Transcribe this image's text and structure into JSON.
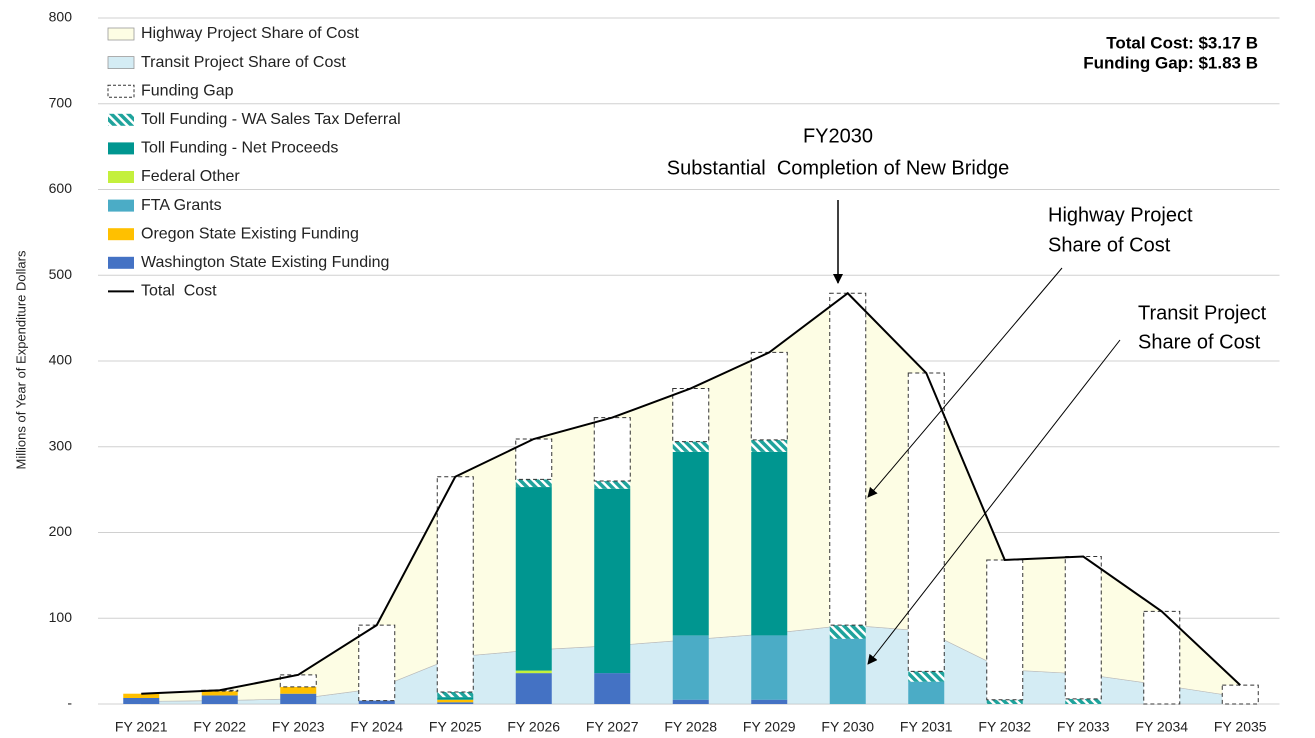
{
  "chart_data": {
    "type": "bar",
    "ylabel": "Millions of Year of Expenditure Dollars",
    "categories": [
      "FY 2021",
      "FY 2022",
      "FY 2023",
      "FY 2024",
      "FY 2025",
      "FY 2026",
      "FY 2027",
      "FY 2028",
      "FY 2029",
      "FY 2030",
      "FY 2031",
      "FY 2032",
      "FY 2033",
      "FY 2034",
      "FY 2035"
    ],
    "ylim": [
      0,
      800
    ],
    "yticks": [
      {
        "value": 0,
        "label": "-"
      },
      100,
      200,
      300,
      400,
      500,
      600,
      700,
      800
    ],
    "grid": true,
    "series": [
      {
        "name": "Washington State Existing Funding",
        "kind": "bar",
        "color": "#4472c4",
        "values": [
          7,
          10,
          12,
          4,
          2,
          36,
          36,
          5,
          5,
          0,
          0,
          0,
          0,
          0,
          0
        ]
      },
      {
        "name": "Oregon State Existing Funding",
        "kind": "bar",
        "color": "#ffc000",
        "values": [
          5,
          5,
          8,
          0,
          3,
          0,
          0,
          0,
          0,
          0,
          0,
          0,
          0,
          0,
          0
        ]
      },
      {
        "name": "FTA Grants",
        "kind": "bar",
        "color": "#4bacc6",
        "values": [
          0,
          0,
          0,
          0,
          0,
          0,
          0,
          75,
          75,
          76,
          26,
          0,
          0,
          0,
          0
        ]
      },
      {
        "name": "Federal Other",
        "kind": "bar",
        "color": "#c4f03c",
        "values": [
          0,
          0,
          0,
          0,
          0,
          3,
          0,
          0,
          0,
          0,
          0,
          0,
          0,
          0,
          0
        ]
      },
      {
        "name": "Toll Funding - Net Proceeds",
        "kind": "bar",
        "color": "#009690",
        "values": [
          0,
          0,
          0,
          0,
          3,
          214,
          215,
          214,
          214,
          0,
          0,
          0,
          0,
          0,
          0
        ]
      },
      {
        "name": "Toll Funding - WA Sales Tax Deferral",
        "kind": "bar",
        "color": "#1fa39c",
        "pattern": "hatch",
        "values": [
          0,
          0,
          0,
          0,
          6,
          9,
          9,
          12,
          14,
          16,
          12,
          5,
          6,
          0,
          0
        ]
      },
      {
        "name": "Funding Gap",
        "kind": "bar",
        "color": "#ffffff",
        "dashed": true,
        "values": [
          0,
          1,
          14,
          88,
          251,
          47,
          74,
          62,
          102,
          387,
          348,
          163,
          166,
          108,
          22
        ]
      },
      {
        "name": "Transit Project Share of Cost",
        "kind": "area",
        "color": "#d4ecf4",
        "values": [
          3,
          4,
          6,
          18,
          55,
          63,
          68,
          75,
          82,
          92,
          85,
          40,
          35,
          22,
          8
        ]
      },
      {
        "name": "Highway Project Share of Cost",
        "kind": "area",
        "color": "#fdfde4",
        "values": [
          9,
          12,
          28,
          74,
          210,
          246,
          266,
          293,
          328,
          387,
          301,
          128,
          137,
          86,
          14
        ]
      },
      {
        "name": "Total  Cost",
        "kind": "line",
        "color": "#000000",
        "values": [
          12,
          16,
          34,
          92,
          265,
          309,
          334,
          368,
          410,
          479,
          386,
          168,
          172,
          108,
          22
        ]
      }
    ],
    "summary": [
      "Total Cost: $3.17 B",
      "Funding Gap: $1.83 B"
    ],
    "annotations": [
      {
        "lines": [
          "FY2030",
          "Substantial  Completion of New Bridge"
        ]
      },
      {
        "lines": [
          "Highway Project",
          "Share of Cost"
        ]
      },
      {
        "lines": [
          "Transit Project",
          "Share of Cost"
        ]
      }
    ]
  }
}
